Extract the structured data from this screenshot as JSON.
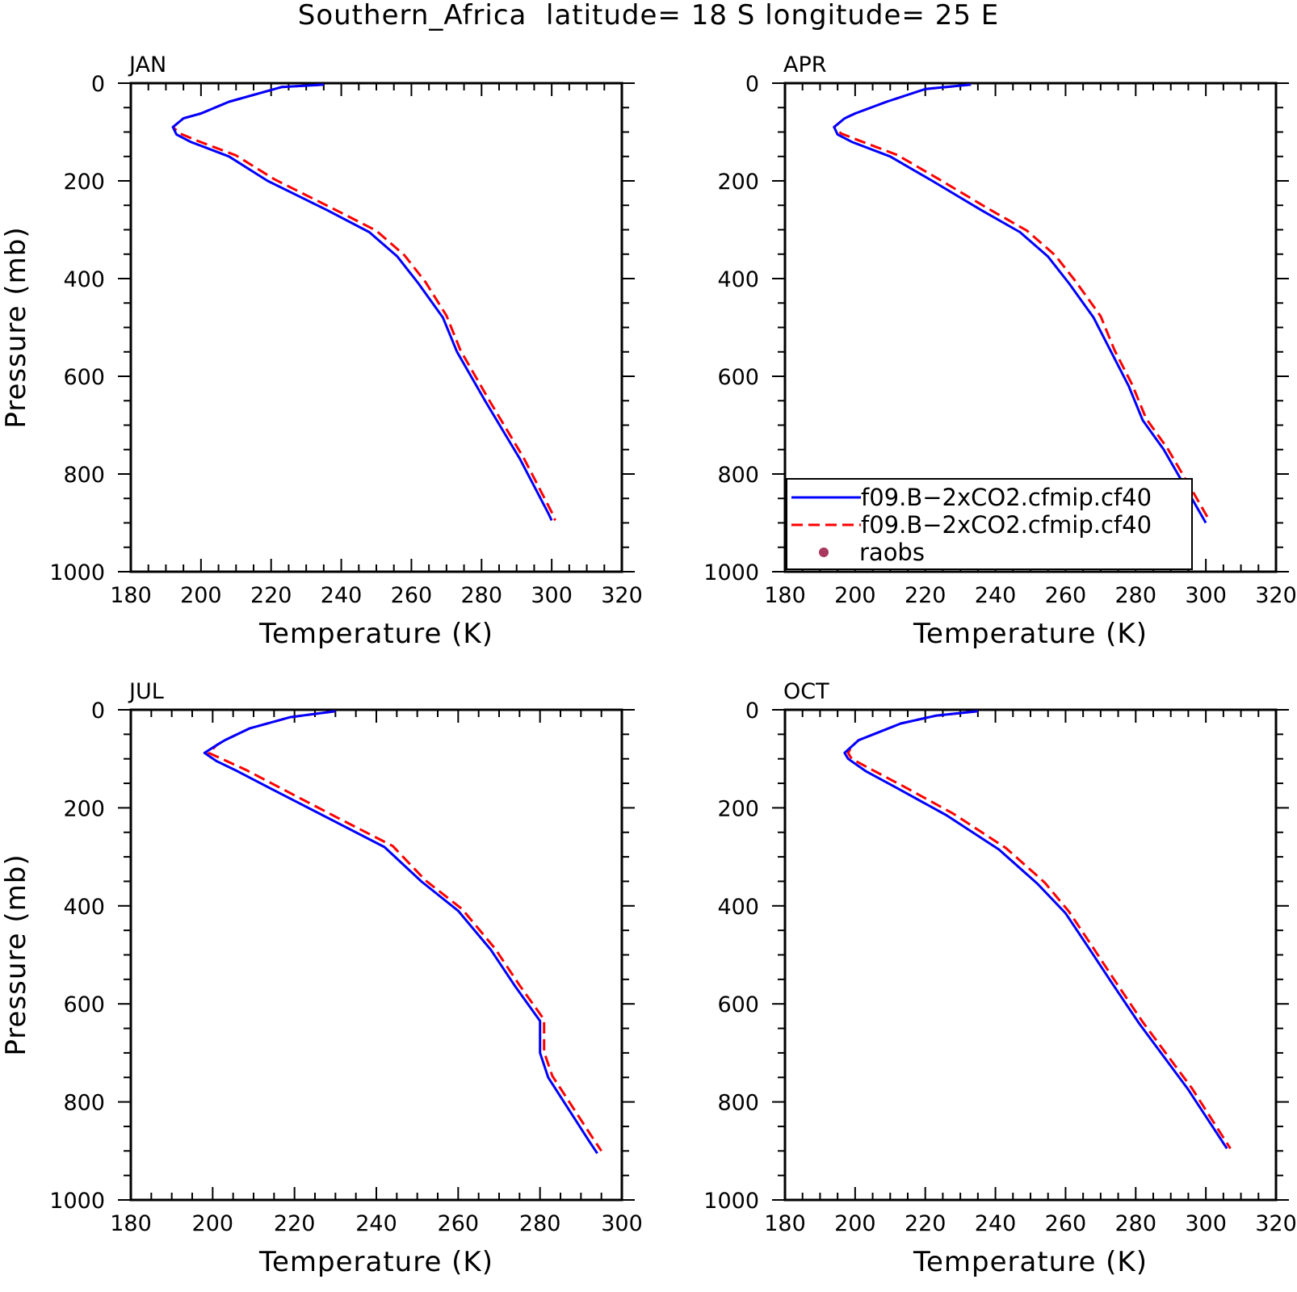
{
  "figure": {
    "title": "Southern_Africa  latitude= 18 S longitude= 25 E"
  },
  "colors": {
    "model_line": "#0000ff",
    "co2_line": "#ff0000",
    "raobs_marker": "#a8385f",
    "axis": "#000000"
  },
  "legend": {
    "entries": [
      {
        "label": "f09.B−2xCO2.cfmip.cf40",
        "style": "solid",
        "color": "#0000ff"
      },
      {
        "label": "f09.B−2xCO2.cfmip.cf40",
        "style": "dashed",
        "color": "#ff0000"
      },
      {
        "label": "raobs",
        "style": "marker",
        "color": "#a8385f"
      }
    ]
  },
  "chart_data": [
    {
      "type": "line",
      "title": "JAN",
      "xlabel": "Temperature (K)",
      "ylabel": "Pressure (mb)",
      "xlim": [
        180,
        320
      ],
      "ylim": [
        1000,
        0
      ],
      "xticks": [
        180,
        200,
        220,
        240,
        260,
        280,
        300,
        320
      ],
      "yticks": [
        0,
        200,
        400,
        600,
        800,
        1000
      ],
      "series": [
        {
          "name": "f09.B−2xCO2.cfmip.cf40",
          "style": "solid",
          "color": "#0000ff",
          "points": [
            [
              235,
              3
            ],
            [
              223,
              8
            ],
            [
              208,
              38
            ],
            [
              200,
              62
            ],
            [
              195,
              72
            ],
            [
              192,
              90
            ],
            [
              193,
              105
            ],
            [
              197,
              120
            ],
            [
              208,
              150
            ],
            [
              219,
              200
            ],
            [
              236,
              260
            ],
            [
              248,
              305
            ],
            [
              256,
              355
            ],
            [
              262,
              410
            ],
            [
              269,
              480
            ],
            [
              273,
              550
            ],
            [
              281,
              650
            ],
            [
              291,
              770
            ],
            [
              299,
              880
            ],
            [
              300,
              895
            ]
          ]
        },
        {
          "name": "f09.B−2xCO2.cfmip.cf40",
          "style": "dashed",
          "color": "#ff0000",
          "points": [
            [
              235,
              3
            ],
            [
              223,
              8
            ],
            [
              208,
              38
            ],
            [
              200,
              62
            ],
            [
              195,
              72
            ],
            [
              192,
              90
            ],
            [
              194,
              103
            ],
            [
              199,
              118
            ],
            [
              210,
              148
            ],
            [
              221,
              197
            ],
            [
              238,
              258
            ],
            [
              250,
              302
            ],
            [
              258,
              352
            ],
            [
              264,
              407
            ],
            [
              270,
              476
            ],
            [
              274,
              547
            ],
            [
              282,
              647
            ],
            [
              292,
              767
            ],
            [
              300,
              878
            ],
            [
              301,
              895
            ]
          ]
        }
      ]
    },
    {
      "type": "line",
      "title": "APR",
      "xlabel": "Temperature (K)",
      "ylabel": "",
      "xlim": [
        180,
        320
      ],
      "ylim": [
        1000,
        0
      ],
      "xticks": [
        180,
        200,
        220,
        240,
        260,
        280,
        300,
        320
      ],
      "yticks": [
        0,
        200,
        400,
        600,
        800,
        1000
      ],
      "series": [
        {
          "name": "f09.B−2xCO2.cfmip.cf40",
          "style": "solid",
          "color": "#0000ff",
          "points": [
            [
              233,
              3
            ],
            [
              220,
              12
            ],
            [
              209,
              38
            ],
            [
              200,
              62
            ],
            [
              197,
              72
            ],
            [
              194,
              90
            ],
            [
              195,
              105
            ],
            [
              199,
              120
            ],
            [
              210,
              150
            ],
            [
              222,
              200
            ],
            [
              236,
              260
            ],
            [
              247,
              305
            ],
            [
              255,
              355
            ],
            [
              261,
              410
            ],
            [
              268,
              480
            ],
            [
              273,
              550
            ],
            [
              278,
              620
            ],
            [
              282,
              690
            ],
            [
              288,
              750
            ],
            [
              296,
              850
            ],
            [
              300,
              900
            ]
          ]
        },
        {
          "name": "f09.B−2xCO2.cfmip.cf40",
          "style": "dashed",
          "color": "#ff0000",
          "points": [
            [
              233,
              3
            ],
            [
              220,
              12
            ],
            [
              209,
              38
            ],
            [
              200,
              62
            ],
            [
              197,
              72
            ],
            [
              194,
              90
            ],
            [
              196,
              103
            ],
            [
              201,
              117
            ],
            [
              212,
              147
            ],
            [
              224,
              197
            ],
            [
              238,
              257
            ],
            [
              249,
              302
            ],
            [
              257,
              352
            ],
            [
              263,
              407
            ],
            [
              270,
              477
            ],
            [
              274,
              547
            ],
            [
              279,
              617
            ],
            [
              283,
              687
            ],
            [
              289,
              747
            ],
            [
              297,
              845
            ],
            [
              301,
              895
            ]
          ]
        }
      ]
    },
    {
      "type": "line",
      "title": "JUL",
      "xlabel": "Temperature (K)",
      "ylabel": "Pressure (mb)",
      "xlim": [
        180,
        300
      ],
      "ylim": [
        1000,
        0
      ],
      "xticks": [
        180,
        200,
        220,
        240,
        260,
        280,
        300
      ],
      "yticks": [
        0,
        200,
        400,
        600,
        800,
        1000
      ],
      "series": [
        {
          "name": "f09.B−2xCO2.cfmip.cf40",
          "style": "solid",
          "color": "#0000ff",
          "points": [
            [
              230,
              3
            ],
            [
              219,
              15
            ],
            [
              209,
              38
            ],
            [
              203,
              62
            ],
            [
              201,
              72
            ],
            [
              198,
              88
            ],
            [
              201,
              105
            ],
            [
              206,
              125
            ],
            [
              214,
              160
            ],
            [
              228,
              220
            ],
            [
              242,
              280
            ],
            [
              251,
              350
            ],
            [
              260,
              410
            ],
            [
              268,
              490
            ],
            [
              274,
              565
            ],
            [
              280,
              635
            ],
            [
              280,
              700
            ],
            [
              282,
              750
            ],
            [
              292,
              880
            ],
            [
              294,
              905
            ]
          ]
        },
        {
          "name": "f09.B−2xCO2.cfmip.cf40",
          "style": "dashed",
          "color": "#ff0000",
          "points": [
            [
              230,
              3
            ],
            [
              219,
              15
            ],
            [
              209,
              38
            ],
            [
              203,
              62
            ],
            [
              201,
              72
            ],
            [
              199,
              88
            ],
            [
              203,
              103
            ],
            [
              208,
              122
            ],
            [
              216,
              157
            ],
            [
              230,
              218
            ],
            [
              244,
              278
            ],
            [
              252,
              348
            ],
            [
              261,
              407
            ],
            [
              269,
              487
            ],
            [
              275,
              562
            ],
            [
              281,
              632
            ],
            [
              281,
              698
            ],
            [
              283,
              747
            ],
            [
              293,
              875
            ],
            [
              295,
              900
            ]
          ]
        }
      ]
    },
    {
      "type": "line",
      "title": "OCT",
      "xlabel": "Temperature (K)",
      "ylabel": "",
      "xlim": [
        180,
        320
      ],
      "ylim": [
        1000,
        0
      ],
      "xticks": [
        180,
        200,
        220,
        240,
        260,
        280,
        300,
        320
      ],
      "yticks": [
        0,
        200,
        400,
        600,
        800,
        1000
      ],
      "series": [
        {
          "name": "f09.B−2xCO2.cfmip.cf40",
          "style": "solid",
          "color": "#0000ff",
          "points": [
            [
              235,
              3
            ],
            [
              223,
              12
            ],
            [
              213,
              28
            ],
            [
              207,
              45
            ],
            [
              201,
              62
            ],
            [
              199,
              75
            ],
            [
              197,
              88
            ],
            [
              198,
              100
            ],
            [
              203,
              125
            ],
            [
              212,
              160
            ],
            [
              226,
              215
            ],
            [
              241,
              285
            ],
            [
              252,
              355
            ],
            [
              260,
              415
            ],
            [
              267,
              490
            ],
            [
              273,
              555
            ],
            [
              281,
              640
            ],
            [
              295,
              775
            ],
            [
              306,
              895
            ]
          ]
        },
        {
          "name": "f09.B−2xCO2.cfmip.cf40",
          "style": "dashed",
          "color": "#ff0000",
          "points": [
            [
              235,
              3
            ],
            [
              223,
              12
            ],
            [
              213,
              28
            ],
            [
              207,
              45
            ],
            [
              201,
              62
            ],
            [
              199,
              75
            ],
            [
              198,
              88
            ],
            [
              199,
              100
            ],
            [
              205,
              123
            ],
            [
              214,
              157
            ],
            [
              228,
              212
            ],
            [
              243,
              282
            ],
            [
              254,
              352
            ],
            [
              261,
              412
            ],
            [
              268,
              487
            ],
            [
              274,
              552
            ],
            [
              282,
              637
            ],
            [
              296,
              772
            ],
            [
              307,
              895
            ]
          ]
        }
      ]
    }
  ]
}
